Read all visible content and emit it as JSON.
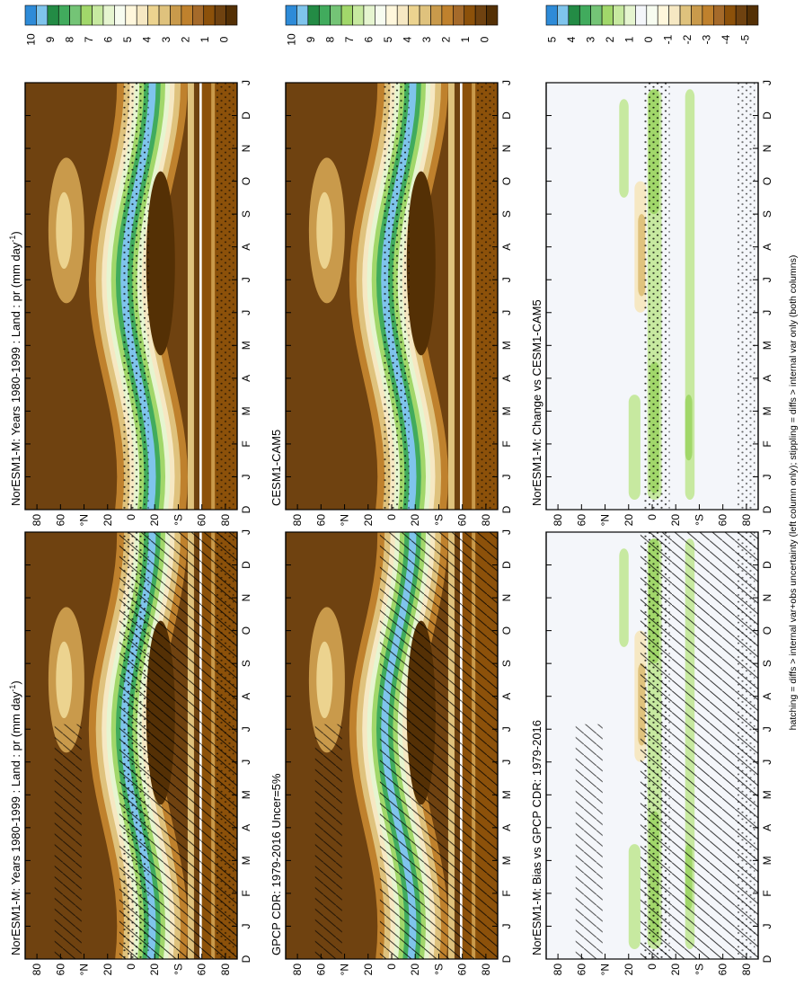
{
  "figure": {
    "footnote": "hatching = diffs > internal var+obs uncertainty (left column only); stippling = diffs > internal var only (both columns)"
  },
  "colorbars": {
    "abs": {
      "labels": [
        "10",
        "9",
        "8",
        "7",
        "6",
        "5",
        "4",
        "3",
        "2",
        "1",
        "0"
      ],
      "colors": [
        "#2e8bd8",
        "#7fc4ec",
        "#238b45",
        "#41ab5d",
        "#74c476",
        "#a1d76a",
        "#c7e9a0",
        "#e6f5d0",
        "#f7fcf0",
        "#fff7dc",
        "#f6e8c3",
        "#ecd38f",
        "#dfc27d",
        "#c99a4b",
        "#bf812d",
        "#a56a2a",
        "#8c510a",
        "#6f4210",
        "#543005"
      ]
    },
    "diff": {
      "labels": [
        "5",
        "4",
        "3",
        "2",
        "1",
        "0",
        "-1",
        "-2",
        "-3",
        "-4",
        "-5"
      ],
      "colors": [
        "#2e8bd8",
        "#7fc4ec",
        "#238b45",
        "#41ab5d",
        "#74c476",
        "#a1d76a",
        "#c7e9a0",
        "#e6f5d0",
        "#f4f6fa",
        "#f7fcf0",
        "#fff7dc",
        "#f6e8c3",
        "#dfc27d",
        "#c99a4b",
        "#bf812d",
        "#a56a2a",
        "#8c510a",
        "#6f4210",
        "#543005"
      ]
    }
  },
  "chart_data": [
    {
      "id": "p1",
      "type": "heatmap",
      "title": "NorESM1-M: Years 1980-1999 : Land : pr (mm day",
      "title_sup": "-1",
      "title_tail": ")",
      "x": [
        "D",
        "J",
        "F",
        "M",
        "A",
        "M",
        "J",
        "J",
        "A",
        "S",
        "O",
        "N",
        "D",
        "J"
      ],
      "y_ticks": [
        "80",
        "60",
        "°N",
        "20",
        "0",
        "20",
        "°S",
        "60",
        "80"
      ],
      "kind": "abs",
      "overlay": "hatch+stipple",
      "ylim": [
        -90,
        90
      ]
    },
    {
      "id": "p2",
      "type": "heatmap",
      "title": "NorESM1-M: Years 1980-1999 : Land : pr (mm day",
      "title_sup": "-1",
      "title_tail": ")",
      "x": [
        "D",
        "J",
        "F",
        "M",
        "A",
        "M",
        "J",
        "J",
        "A",
        "S",
        "O",
        "N",
        "D",
        "J"
      ],
      "y_ticks": [
        "80",
        "60",
        "°N",
        "20",
        "0",
        "20",
        "°S",
        "60",
        "80"
      ],
      "kind": "abs",
      "overlay": "stipple",
      "ylim": [
        -90,
        90
      ]
    },
    {
      "id": "p3",
      "type": "heatmap",
      "title": "GPCP CDR: 1979-2016 Uncer=5%",
      "x": [
        "D",
        "J",
        "F",
        "M",
        "A",
        "M",
        "J",
        "J",
        "A",
        "S",
        "O",
        "N",
        "D",
        "J"
      ],
      "y_ticks": [
        "80",
        "60",
        "°N",
        "20",
        "0",
        "20",
        "°S",
        "60",
        "80"
      ],
      "kind": "abs",
      "overlay": "hatch",
      "ylim": [
        -90,
        90
      ]
    },
    {
      "id": "p4",
      "type": "heatmap",
      "title": "CESM1-CAM5",
      "x": [
        "D",
        "J",
        "F",
        "M",
        "A",
        "M",
        "J",
        "J",
        "A",
        "S",
        "O",
        "N",
        "D",
        "J"
      ],
      "y_ticks": [
        "80",
        "60",
        "°N",
        "20",
        "0",
        "20",
        "°S",
        "60",
        "80"
      ],
      "kind": "abs",
      "overlay": "stipple",
      "ylim": [
        -90,
        90
      ]
    },
    {
      "id": "p5",
      "type": "heatmap",
      "title": "NorESM1-M: Bias vs GPCP CDR: 1979-2016",
      "x": [
        "D",
        "J",
        "F",
        "M",
        "A",
        "M",
        "J",
        "J",
        "A",
        "S",
        "O",
        "N",
        "D",
        "J"
      ],
      "y_ticks": [
        "80",
        "60",
        "°N",
        "20",
        "0",
        "20",
        "°S",
        "60",
        "80"
      ],
      "kind": "diff",
      "overlay": "hatch+stipple",
      "ylim": [
        -90,
        90
      ]
    },
    {
      "id": "p6",
      "type": "heatmap",
      "title": "NorESM1-M: Change vs CESM1-CAM5",
      "x": [
        "D",
        "J",
        "F",
        "M",
        "A",
        "M",
        "J",
        "J",
        "A",
        "S",
        "O",
        "N",
        "D",
        "J"
      ],
      "y_ticks": [
        "80",
        "60",
        "°N",
        "20",
        "0",
        "20",
        "°S",
        "60",
        "80"
      ],
      "kind": "diff",
      "overlay": "stipple",
      "ylim": [
        -90,
        90
      ]
    }
  ]
}
